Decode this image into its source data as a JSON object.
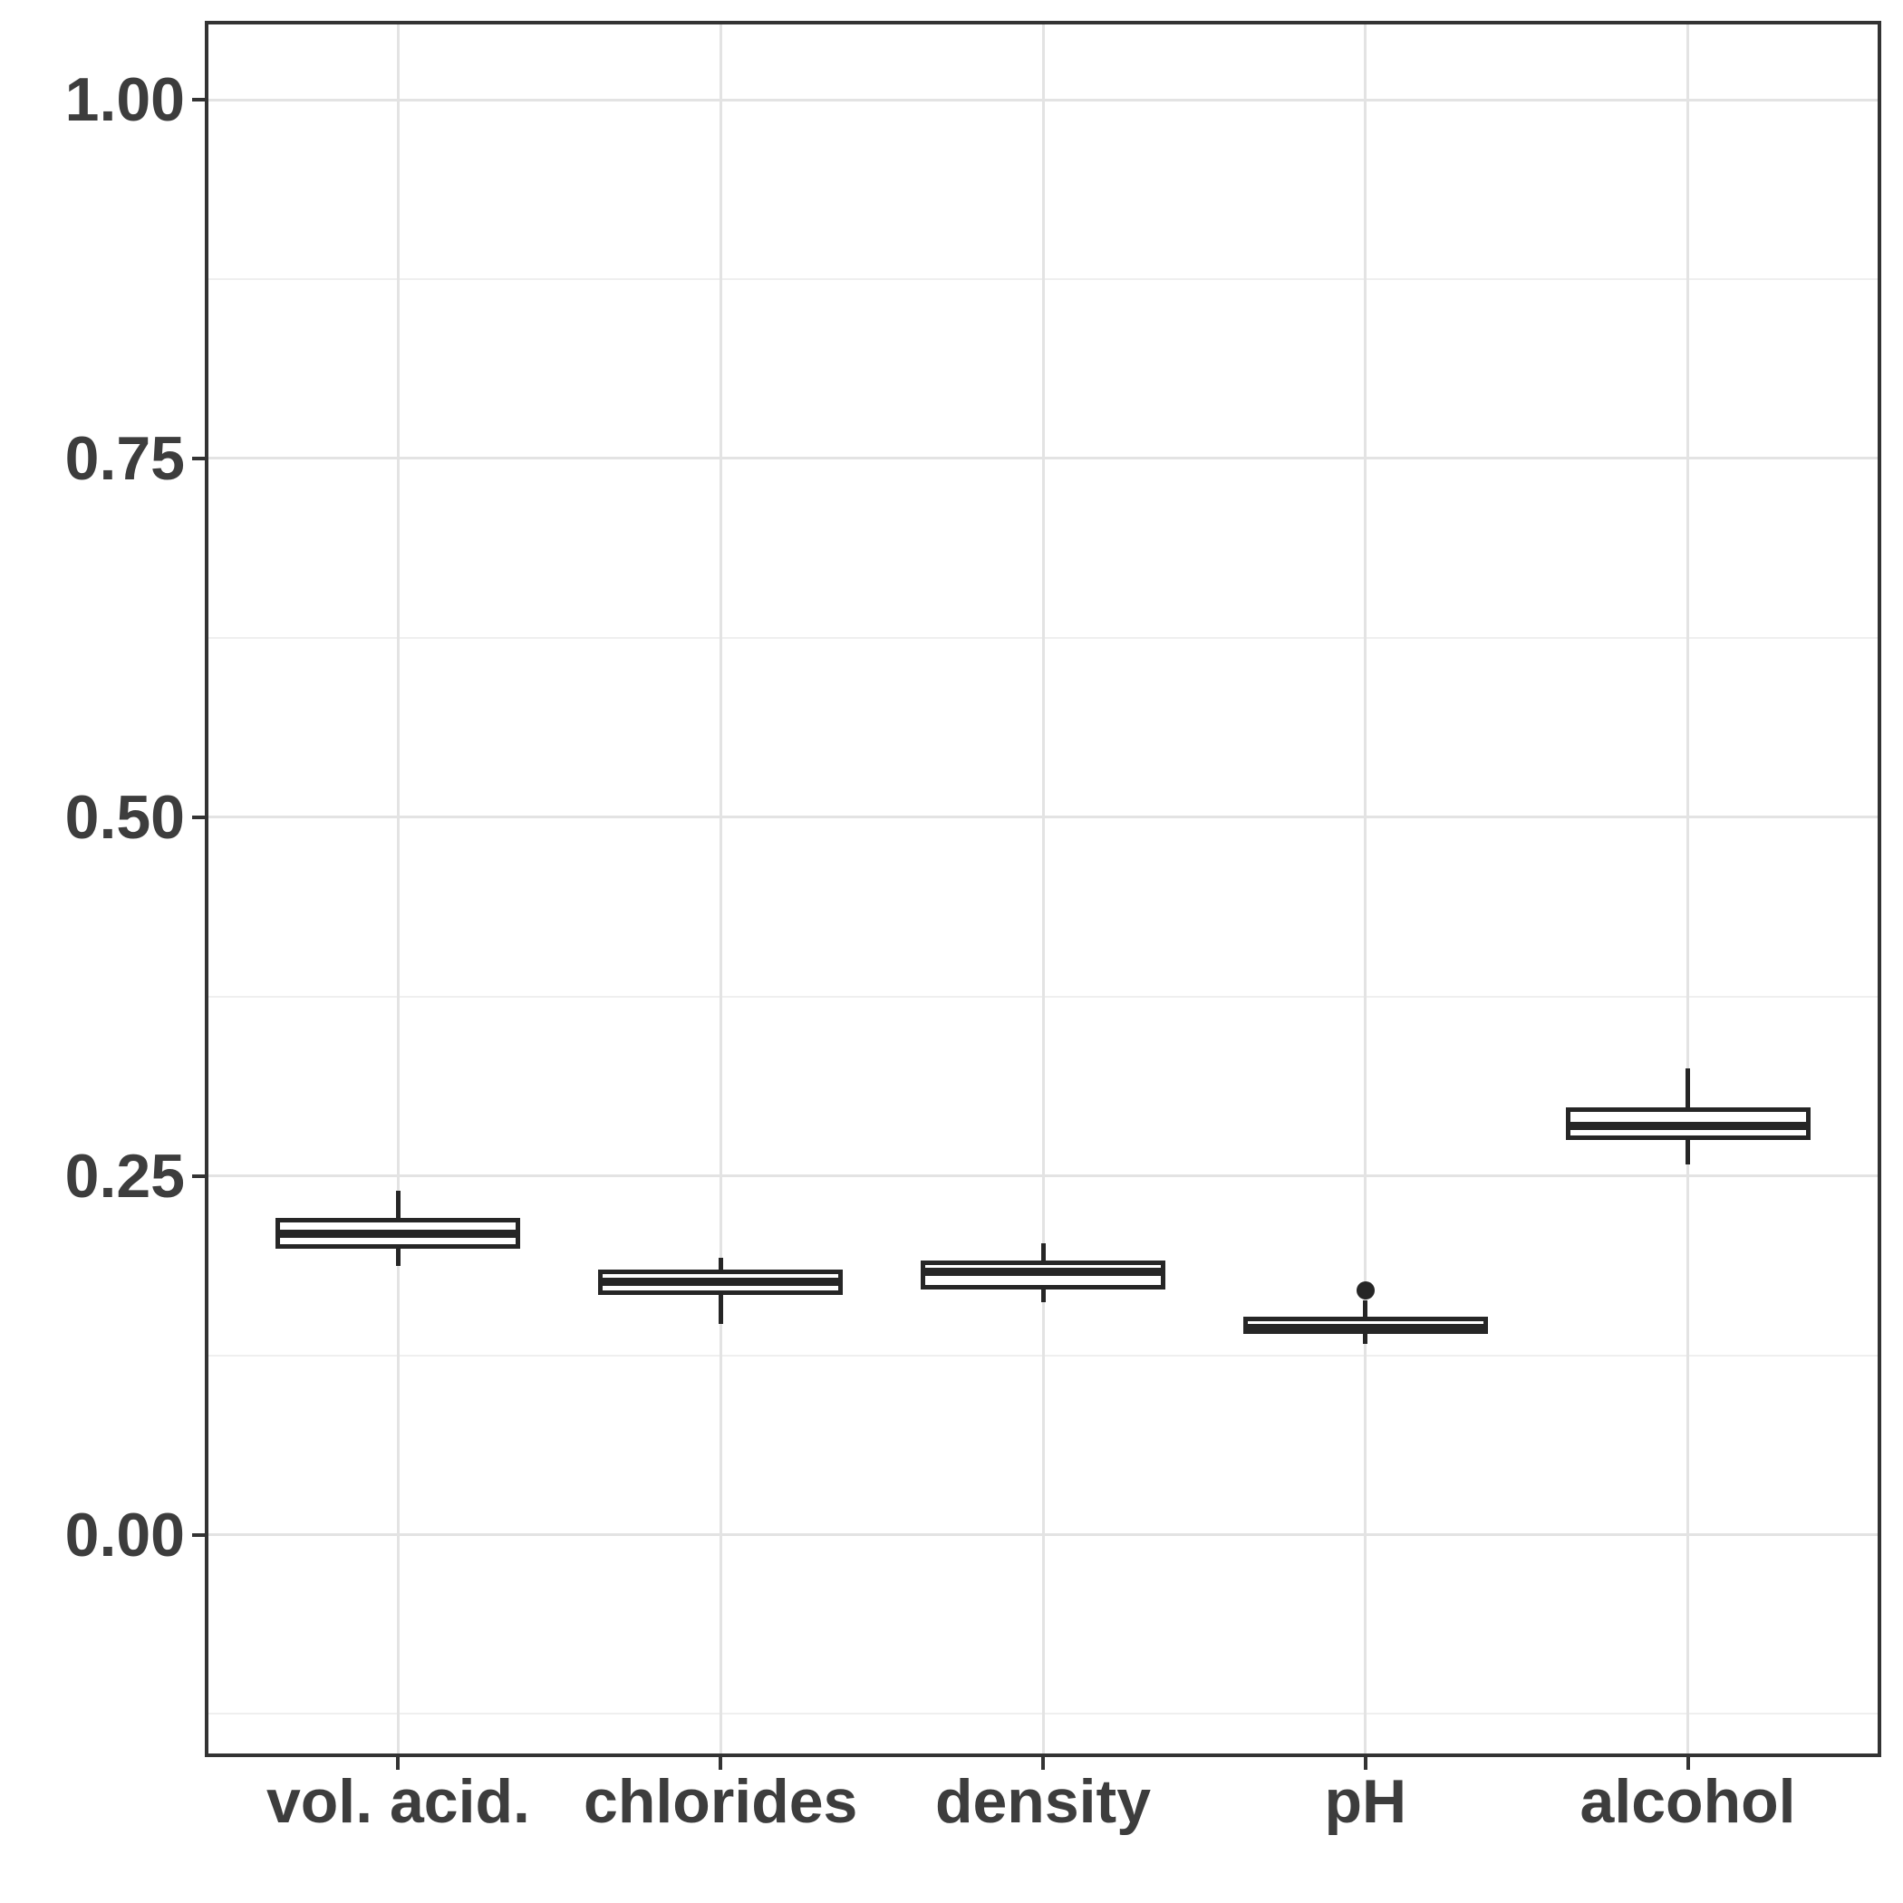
{
  "figure": {
    "title": "",
    "background": "#ffffff"
  },
  "chart_data": {
    "type": "boxplot",
    "title": "",
    "xlabel": "",
    "ylabel": "",
    "categories": [
      "vol. acid.",
      "chlorides",
      "density",
      "pH",
      "alcohol"
    ],
    "series": [
      {
        "name": "vol. acid.",
        "whisker_low": 0.187,
        "q1": 0.199,
        "median": 0.21,
        "q3": 0.221,
        "whisker_high": 0.24,
        "outliers": []
      },
      {
        "name": "chlorides",
        "whisker_low": 0.147,
        "q1": 0.167,
        "median": 0.176,
        "q3": 0.185,
        "whisker_high": 0.193,
        "outliers": []
      },
      {
        "name": "density",
        "whisker_low": 0.162,
        "q1": 0.171,
        "median": 0.183,
        "q3": 0.191,
        "whisker_high": 0.203,
        "outliers": []
      },
      {
        "name": "pH",
        "whisker_low": 0.133,
        "q1": 0.14,
        "median": 0.144,
        "q3": 0.152,
        "whisker_high": 0.163,
        "outliers": [
          0.17
        ]
      },
      {
        "name": "alcohol",
        "whisker_low": 0.258,
        "q1": 0.275,
        "median": 0.285,
        "q3": 0.298,
        "whisker_high": 0.325,
        "outliers": []
      }
    ],
    "y_major_ticks": [
      {
        "label": "0.00",
        "value": 0.0
      },
      {
        "label": "0.25",
        "value": 0.25
      },
      {
        "label": "0.50",
        "value": 0.5
      },
      {
        "label": "0.75",
        "value": 0.75
      },
      {
        "label": "1.00",
        "value": 1.0
      }
    ],
    "y_minor_values": [
      -0.125,
      0.125,
      0.375,
      0.625,
      0.875
    ],
    "ylim": [
      -0.155,
      1.055
    ],
    "grid": "horizontal major+minor; vertical major at category centers",
    "legend": "none",
    "box_fill": "#ffffff",
    "box_stroke": "#262626",
    "grid_major_color": "#e3e3e3",
    "grid_minor_color": "#efefef",
    "panel_border_color": "#333333",
    "tick_color": "#333333",
    "label_color": "#3d3d3d"
  }
}
